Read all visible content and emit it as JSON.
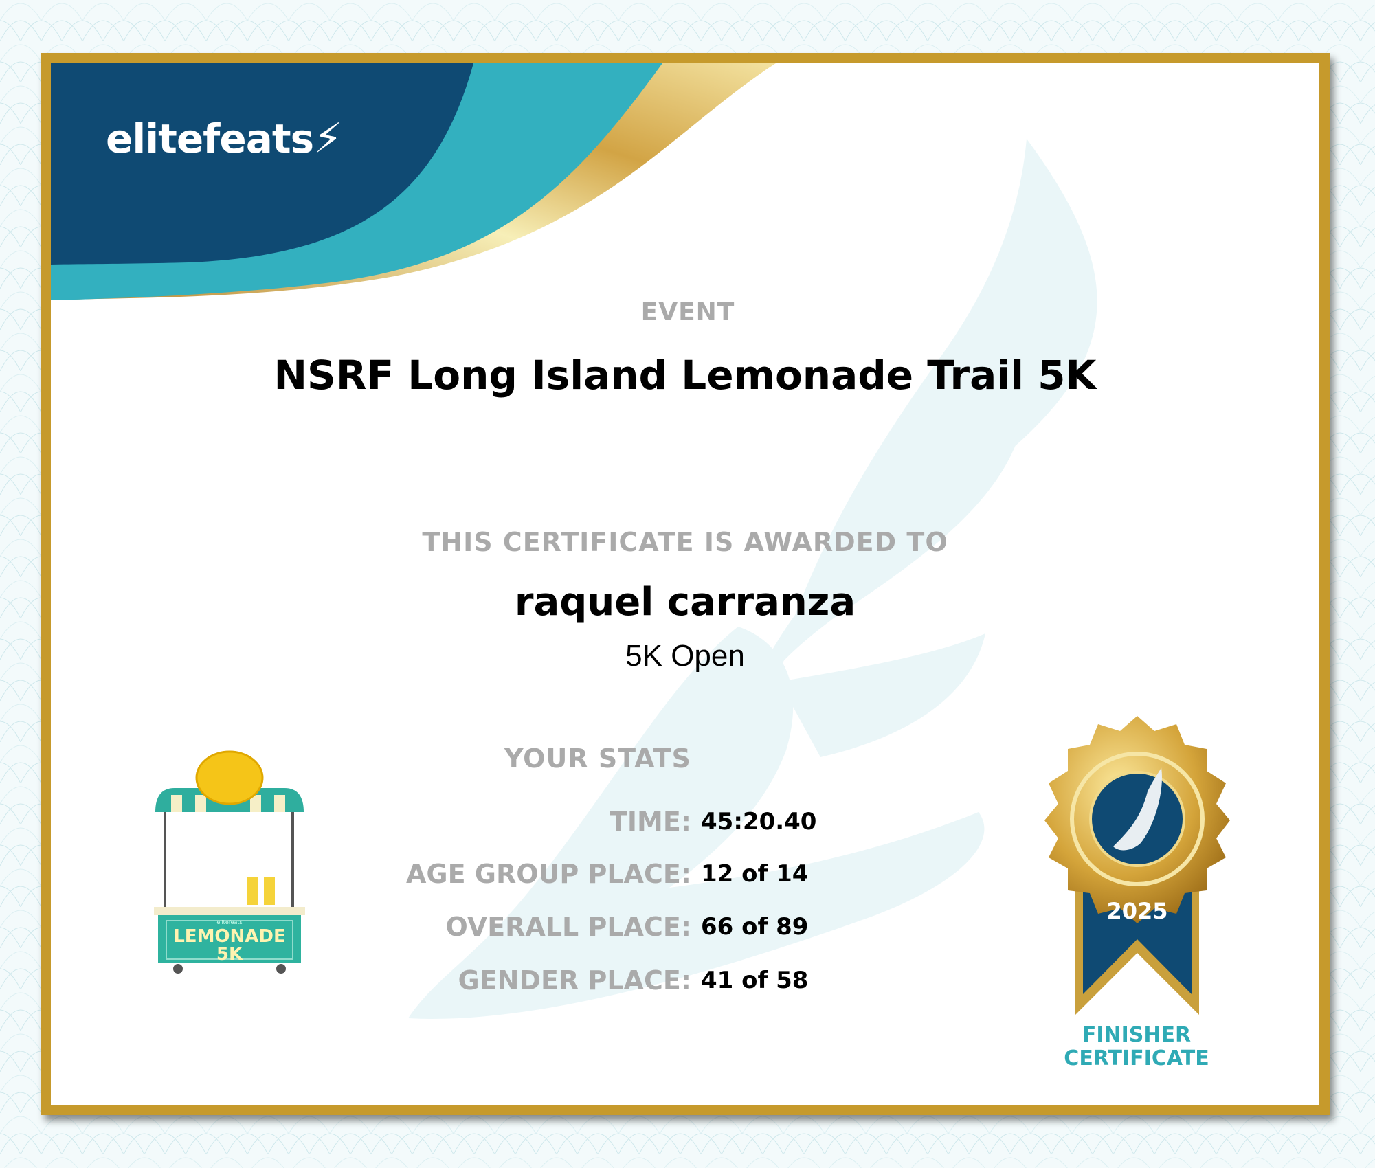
{
  "brand": {
    "logo_text": "elitefeats"
  },
  "colors": {
    "navy": "#0f4a73",
    "teal": "#33b0bf",
    "gold": "#c69a2c",
    "label_grey": "#aaaaaa"
  },
  "event": {
    "label": "EVENT",
    "name": "NSRF Long Island Lemonade Trail 5K"
  },
  "award": {
    "label": "THIS CERTIFICATE IS AWARDED TO",
    "recipient": "raquel carranza",
    "division": "5K Open"
  },
  "stats": {
    "label": "YOUR STATS",
    "rows": [
      {
        "label": "TIME:",
        "value": "45:20.40"
      },
      {
        "label": "AGE GROUP PLACE:",
        "value": "12 of 14"
      },
      {
        "label": "OVERALL PLACE:",
        "value": "66 of 89"
      },
      {
        "label": "GENDER PLACE:",
        "value": "41 of 58"
      }
    ]
  },
  "stand": {
    "sign_brand": "elitefeats",
    "sign_line1": "LEMONADE",
    "sign_line2": "5K"
  },
  "medal": {
    "year": "2025",
    "caption_line1": "FINISHER",
    "caption_line2": "CERTIFICATE"
  }
}
